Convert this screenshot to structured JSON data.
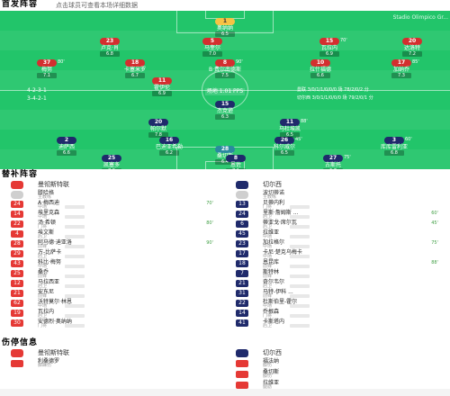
{
  "header": {
    "title": "首发阵容",
    "subtitle": "点击球员可查看本场详细数据",
    "right_note": "Stadio Olimpico Gr..."
  },
  "pitch": {
    "home_formation": "4-2-3-1",
    "away_formation": "3-4-2-1",
    "home_coach_tag": "主教练",
    "center_label": "场地 1.01 PPS",
    "left_notes": [
      "4-2-3-1",
      "3-4-2-1"
    ],
    "right_notes": [
      "曼联 3/0/1/1/0/0/0 场 78/2/0/2 分",
      "切尔西 3/0/1/1/0/0/0 场 79/2/0/1 分"
    ],
    "home_players": [
      {
        "num": "1",
        "name": "奥纳纳",
        "rating": "6.5",
        "minute": ""
      },
      {
        "num": "23",
        "name": "卢克·肖",
        "rating": "6.8",
        "minute": ""
      },
      {
        "num": "5",
        "name": "马奎尔",
        "rating": "7.0",
        "minute": ""
      },
      {
        "num": "15",
        "name": "瓦拉内",
        "rating": "6.9",
        "minute": "70'"
      },
      {
        "num": "20",
        "name": "达洛特",
        "rating": "7.2",
        "minute": ""
      },
      {
        "num": "37",
        "name": "梅努",
        "rating": "7.1",
        "minute": "80'"
      },
      {
        "num": "18",
        "name": "卡塞米罗",
        "rating": "6.7",
        "minute": ""
      },
      {
        "num": "8",
        "name": "B·费尔南德斯",
        "rating": "7.5",
        "minute": "90'"
      },
      {
        "num": "10",
        "name": "拉什福德",
        "rating": "6.6",
        "minute": ""
      },
      {
        "num": "17",
        "name": "加纳乔",
        "rating": "7.3",
        "minute": "85'"
      },
      {
        "num": "11",
        "name": "霍伊伦",
        "rating": "6.9",
        "minute": ""
      }
    ],
    "away_players": [
      {
        "num": "28",
        "name": "桑切斯",
        "rating": "6.4",
        "minute": ""
      },
      {
        "num": "2",
        "name": "迪萨西",
        "rating": "6.6",
        "minute": ""
      },
      {
        "num": "16",
        "name": "巴迪亚希勒",
        "rating": "6.2",
        "minute": ""
      },
      {
        "num": "26",
        "name": "科尔威尔",
        "rating": "6.5",
        "minute": "45'"
      },
      {
        "num": "3",
        "name": "库库雷利亚",
        "rating": "6.8",
        "minute": "60'"
      },
      {
        "num": "25",
        "name": "凯塞多",
        "rating": "7.0",
        "minute": ""
      },
      {
        "num": "8",
        "name": "恩佐",
        "rating": "7.1",
        "minute": ""
      },
      {
        "num": "27",
        "name": "古斯托",
        "rating": "6.7",
        "minute": "75'"
      },
      {
        "num": "20",
        "name": "帕尔默",
        "rating": "7.8",
        "minute": ""
      },
      {
        "num": "11",
        "name": "马杜埃凯",
        "rating": "6.5",
        "minute": "88'"
      },
      {
        "num": "15",
        "name": "杰克逊",
        "rating": "6.3",
        "minute": ""
      }
    ]
  },
  "subs": {
    "title": "替补阵容",
    "home": {
      "team": "曼彻斯特联",
      "coach": {
        "name": "滕哈格",
        "role": "主教练"
      },
      "players": [
        {
          "num": "24",
          "name": "A·梅西迪",
          "pos": "中场",
          "min": "70'"
        },
        {
          "num": "14",
          "name": "埃里克森",
          "pos": "中场",
          "min": ""
        },
        {
          "num": "22",
          "name": "汤·希顿",
          "pos": "门将",
          "min": "80'"
        },
        {
          "num": "4",
          "name": "埃文斯",
          "pos": "后卫",
          "min": ""
        },
        {
          "num": "28",
          "name": "阿马德·迪亚洛",
          "pos": "前锋",
          "min": "90'"
        },
        {
          "num": "29",
          "name": "万-比萨卡",
          "pos": "后卫",
          "min": ""
        },
        {
          "num": "43",
          "name": "科比·梅努",
          "pos": "中场",
          "min": ""
        },
        {
          "num": "25",
          "name": "桑乔",
          "pos": "前锋",
          "min": ""
        },
        {
          "num": "12",
          "name": "马拉西亚",
          "pos": "后卫",
          "min": ""
        },
        {
          "num": "21",
          "name": "安东尼",
          "pos": "前锋",
          "min": ""
        },
        {
          "num": "62",
          "name": "沃特莫尔·林恩",
          "pos": "中场",
          "min": ""
        },
        {
          "num": "19",
          "name": "瓦拉内",
          "pos": "后卫",
          "min": ""
        },
        {
          "num": "30",
          "name": "安德烈·奥纳纳",
          "pos": "门将",
          "min": ""
        }
      ]
    },
    "away": {
      "team": "切尔西",
      "coach": {
        "name": "波切蒂诺",
        "role": "主教练"
      },
      "players": [
        {
          "num": "13",
          "name": "贝蒂内利",
          "pos": "门将",
          "min": ""
        },
        {
          "num": "24",
          "name": "里斯·詹姆斯 ...",
          "pos": "后卫",
          "min": "60'"
        },
        {
          "num": "6",
          "name": "蒂亚戈·席尔瓦",
          "pos": "后卫",
          "min": "45'"
        },
        {
          "num": "45",
          "name": "拉维亚",
          "pos": "中场",
          "min": ""
        },
        {
          "num": "23",
          "name": "加拉格尔",
          "pos": "中场",
          "min": "75'"
        },
        {
          "num": "17",
          "name": "卡尼·楚克乌梅卡",
          "pos": "中场",
          "min": ""
        },
        {
          "num": "18",
          "name": "恩昆库",
          "pos": "前锋",
          "min": "88'"
        },
        {
          "num": "7",
          "name": "斯特林",
          "pos": "前锋",
          "min": ""
        },
        {
          "num": "21",
          "name": "奇尔韦尔",
          "pos": "后卫",
          "min": ""
        },
        {
          "num": "31",
          "name": "马特-伊科 ...",
          "pos": "前锋",
          "min": ""
        },
        {
          "num": "22",
          "name": "杜斯伯里-霍尔",
          "pos": "中场",
          "min": ""
        },
        {
          "num": "14",
          "name": "乔根森",
          "pos": "门将",
          "min": ""
        },
        {
          "num": "41",
          "name": "卡斯塔内",
          "pos": "后卫",
          "min": ""
        }
      ]
    }
  },
  "injury": {
    "title": "伤停信息",
    "home": {
      "team": "曼彻斯特联",
      "players": [
        {
          "name": "利桑德罗",
          "reason": "脚踝伤"
        }
      ]
    },
    "away": {
      "team": "切尔西",
      "players": [
        {
          "name": "福法纳",
          "reason": "膝伤"
        },
        {
          "name": "桑切斯",
          "reason": "膝伤"
        },
        {
          "name": "拉维亚",
          "reason": "腿筋"
        }
      ]
    }
  },
  "colors": {
    "pitch": "#22c56a",
    "home": "#d32f2f",
    "away": "#1f2a6b"
  }
}
